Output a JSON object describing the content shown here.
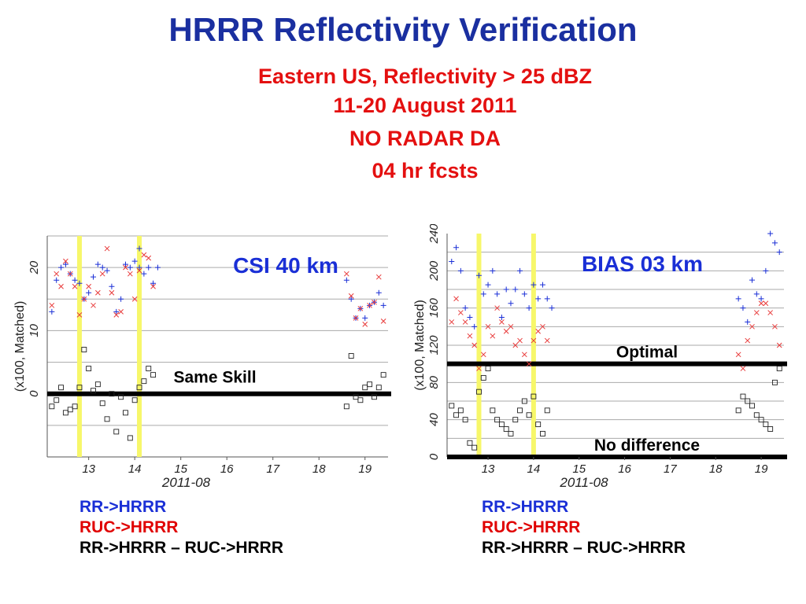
{
  "page": {
    "title": "HRRR Reflectivity Verification",
    "subtitle_lines": [
      "Eastern US, Reflectivity > 25 dBZ",
      "11-20 August 2011",
      "NO RADAR DA",
      "04 hr fcsts"
    ]
  },
  "colors": {
    "title": "#1a2fa0",
    "subtitle": "#e41010",
    "series_rr": "#1a2fd6",
    "series_ruc": "#e83a3a",
    "series_diff": "#222222",
    "highlight": "#f7f76a",
    "grid": "#aaaaaa"
  },
  "legend": {
    "rr": "RR->HRRR",
    "ruc": "RUC->HRRR",
    "diff": "RR->HRRR – RUC->HRRR"
  },
  "chart_data": [
    {
      "type": "scatter",
      "title": "CSI 40 km",
      "ylabel": "(x100, Matched)",
      "xlabel": "2011-08",
      "xlim": [
        12.1,
        19.5
      ],
      "ylim": [
        -10,
        25
      ],
      "yticks": [
        0,
        10,
        20
      ],
      "grid_y": [
        -5,
        0,
        5,
        10,
        15,
        20,
        25
      ],
      "xticks": [
        13,
        14,
        15,
        16,
        17,
        18,
        19
      ],
      "highlights_x": [
        12.8,
        14.1
      ],
      "reference_line": {
        "y": 0,
        "label": "Same Skill"
      },
      "series": [
        {
          "marker": "plus",
          "points": [
            [
              12.2,
              13
            ],
            [
              12.3,
              18
            ],
            [
              12.4,
              20
            ],
            [
              12.5,
              20.5
            ],
            [
              12.6,
              19
            ],
            [
              12.7,
              18
            ],
            [
              12.8,
              17.5
            ],
            [
              12.9,
              15
            ],
            [
              13.0,
              16
            ],
            [
              13.1,
              18.5
            ],
            [
              13.2,
              20.5
            ],
            [
              13.3,
              20
            ],
            [
              13.4,
              19.5
            ],
            [
              13.5,
              17
            ],
            [
              13.6,
              13
            ],
            [
              13.7,
              15
            ],
            [
              13.8,
              20.5
            ],
            [
              13.9,
              20
            ],
            [
              14.0,
              21
            ],
            [
              14.1,
              20
            ],
            [
              14.1,
              23
            ],
            [
              14.2,
              19
            ],
            [
              14.3,
              20
            ],
            [
              14.4,
              17.5
            ],
            [
              14.5,
              20
            ],
            [
              18.6,
              18
            ],
            [
              18.7,
              15
            ],
            [
              18.8,
              12
            ],
            [
              18.9,
              13.5
            ],
            [
              19.0,
              12
            ],
            [
              19.1,
              14
            ],
            [
              19.2,
              14.5
            ],
            [
              19.3,
              16
            ],
            [
              19.4,
              14
            ]
          ]
        },
        {
          "marker": "cross",
          "points": [
            [
              12.2,
              14
            ],
            [
              12.3,
              19
            ],
            [
              12.4,
              17
            ],
            [
              12.5,
              21
            ],
            [
              12.6,
              19
            ],
            [
              12.7,
              17
            ],
            [
              12.8,
              12.5
            ],
            [
              12.9,
              15
            ],
            [
              13.0,
              17
            ],
            [
              13.1,
              14
            ],
            [
              13.2,
              16
            ],
            [
              13.3,
              19
            ],
            [
              13.4,
              23
            ],
            [
              13.5,
              16
            ],
            [
              13.6,
              12.5
            ],
            [
              13.7,
              13
            ],
            [
              13.8,
              20
            ],
            [
              13.9,
              19
            ],
            [
              14.0,
              15
            ],
            [
              14.1,
              19.5
            ],
            [
              14.2,
              22
            ],
            [
              14.3,
              21.5
            ],
            [
              14.4,
              17
            ],
            [
              18.6,
              19
            ],
            [
              18.7,
              15.5
            ],
            [
              18.8,
              12
            ],
            [
              18.9,
              13.5
            ],
            [
              19.0,
              11
            ],
            [
              19.1,
              14
            ],
            [
              19.2,
              14.5
            ],
            [
              19.3,
              18.5
            ],
            [
              19.4,
              11.5
            ]
          ]
        },
        {
          "marker": "square",
          "points": [
            [
              12.2,
              -2
            ],
            [
              12.3,
              -1
            ],
            [
              12.4,
              1
            ],
            [
              12.5,
              -3
            ],
            [
              12.6,
              -2.5
            ],
            [
              12.7,
              -2
            ],
            [
              12.8,
              1
            ],
            [
              12.9,
              7
            ],
            [
              13.0,
              4
            ],
            [
              13.1,
              0.5
            ],
            [
              13.2,
              1.5
            ],
            [
              13.3,
              -1.5
            ],
            [
              13.4,
              -4
            ],
            [
              13.5,
              0
            ],
            [
              13.6,
              -6
            ],
            [
              13.7,
              -0.5
            ],
            [
              13.8,
              -3
            ],
            [
              13.9,
              -7
            ],
            [
              14.0,
              -1
            ],
            [
              14.1,
              1
            ],
            [
              14.2,
              2
            ],
            [
              14.3,
              4
            ],
            [
              14.4,
              3
            ],
            [
              18.6,
              -2
            ],
            [
              18.7,
              6
            ],
            [
              18.8,
              -0.5
            ],
            [
              18.9,
              -1
            ],
            [
              19.0,
              1
            ],
            [
              19.1,
              1.5
            ],
            [
              19.2,
              -0.5
            ],
            [
              19.3,
              1
            ],
            [
              19.4,
              3
            ]
          ]
        }
      ]
    },
    {
      "type": "scatter",
      "title": "BIAS 03 km",
      "ylabel": "(x100, Matched)",
      "xlabel": "2011-08",
      "xlim": [
        12.1,
        19.5
      ],
      "ylim": [
        0,
        240
      ],
      "yticks": [
        0,
        40,
        80,
        120,
        160,
        200,
        240
      ],
      "grid_y": [
        20,
        40,
        60,
        80,
        100,
        120,
        140,
        160,
        180,
        200,
        220
      ],
      "xticks": [
        13,
        14,
        15,
        16,
        17,
        18,
        19
      ],
      "highlights_x": [
        12.8,
        14.0
      ],
      "reference_lines": [
        {
          "y": 100,
          "label": "Optimal"
        },
        {
          "y": 0,
          "label": "No difference"
        }
      ],
      "series": [
        {
          "marker": "plus",
          "points": [
            [
              12.2,
              210
            ],
            [
              12.3,
              225
            ],
            [
              12.4,
              200
            ],
            [
              12.5,
              160
            ],
            [
              12.6,
              150
            ],
            [
              12.7,
              140
            ],
            [
              12.8,
              195
            ],
            [
              12.9,
              175
            ],
            [
              13.0,
              185
            ],
            [
              13.1,
              200
            ],
            [
              13.2,
              175
            ],
            [
              13.3,
              150
            ],
            [
              13.4,
              180
            ],
            [
              13.5,
              165
            ],
            [
              13.6,
              180
            ],
            [
              13.7,
              200
            ],
            [
              13.8,
              175
            ],
            [
              13.9,
              160
            ],
            [
              14.0,
              185
            ],
            [
              14.1,
              170
            ],
            [
              14.2,
              185
            ],
            [
              14.3,
              170
            ],
            [
              14.4,
              160
            ],
            [
              18.5,
              170
            ],
            [
              18.6,
              160
            ],
            [
              18.7,
              145
            ],
            [
              18.8,
              190
            ],
            [
              18.9,
              175
            ],
            [
              19.0,
              170
            ],
            [
              19.1,
              200
            ],
            [
              19.2,
              240
            ],
            [
              19.3,
              230
            ],
            [
              19.4,
              220
            ]
          ]
        },
        {
          "marker": "cross",
          "points": [
            [
              12.2,
              145
            ],
            [
              12.3,
              170
            ],
            [
              12.4,
              155
            ],
            [
              12.5,
              145
            ],
            [
              12.6,
              130
            ],
            [
              12.7,
              120
            ],
            [
              12.8,
              95
            ],
            [
              12.9,
              110
            ],
            [
              13.0,
              140
            ],
            [
              13.1,
              130
            ],
            [
              13.2,
              160
            ],
            [
              13.3,
              145
            ],
            [
              13.4,
              135
            ],
            [
              13.5,
              140
            ],
            [
              13.6,
              120
            ],
            [
              13.7,
              125
            ],
            [
              13.8,
              110
            ],
            [
              13.9,
              100
            ],
            [
              14.0,
              125
            ],
            [
              14.1,
              135
            ],
            [
              14.2,
              140
            ],
            [
              14.3,
              125
            ],
            [
              18.5,
              110
            ],
            [
              18.6,
              95
            ],
            [
              18.7,
              125
            ],
            [
              18.8,
              140
            ],
            [
              18.9,
              155
            ],
            [
              19.0,
              165
            ],
            [
              19.1,
              165
            ],
            [
              19.2,
              155
            ],
            [
              19.3,
              140
            ],
            [
              19.4,
              120
            ]
          ]
        },
        {
          "marker": "square",
          "points": [
            [
              12.2,
              55
            ],
            [
              12.3,
              45
            ],
            [
              12.4,
              50
            ],
            [
              12.5,
              40
            ],
            [
              12.6,
              15
            ],
            [
              12.7,
              10
            ],
            [
              12.8,
              70
            ],
            [
              12.9,
              85
            ],
            [
              13.0,
              95
            ],
            [
              13.1,
              50
            ],
            [
              13.2,
              40
            ],
            [
              13.3,
              35
            ],
            [
              13.4,
              30
            ],
            [
              13.5,
              25
            ],
            [
              13.6,
              40
            ],
            [
              13.7,
              50
            ],
            [
              13.8,
              60
            ],
            [
              13.9,
              45
            ],
            [
              14.0,
              65
            ],
            [
              14.1,
              35
            ],
            [
              14.2,
              25
            ],
            [
              14.3,
              50
            ],
            [
              18.5,
              50
            ],
            [
              18.6,
              65
            ],
            [
              18.7,
              60
            ],
            [
              18.8,
              55
            ],
            [
              18.9,
              45
            ],
            [
              19.0,
              40
            ],
            [
              19.1,
              35
            ],
            [
              19.2,
              30
            ],
            [
              19.3,
              80
            ],
            [
              19.4,
              95
            ]
          ]
        }
      ]
    }
  ]
}
